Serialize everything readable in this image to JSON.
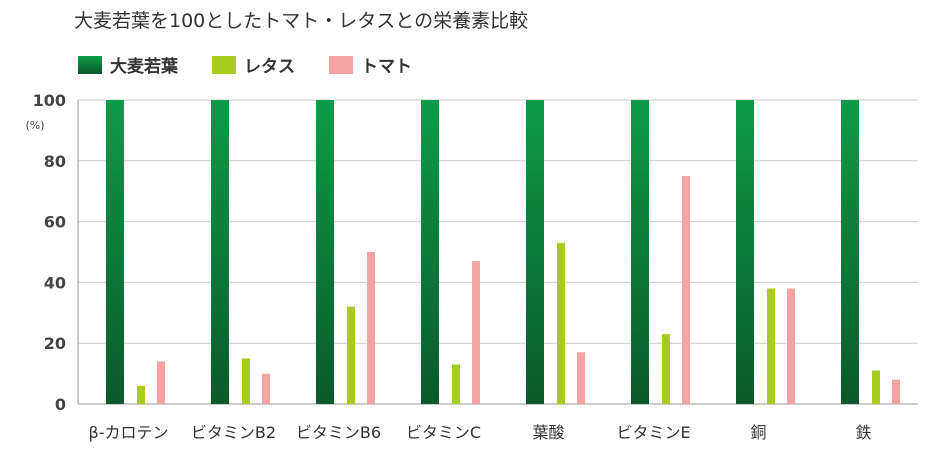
{
  "chart_data": {
    "type": "bar",
    "title": "大麦若葉を100としたトマト・レタスとの栄養素比較",
    "ylabel": "(%)",
    "ylim": [
      0,
      100
    ],
    "yticks": [
      0,
      20,
      40,
      60,
      80,
      100
    ],
    "grid": true,
    "legend_position": "top-left",
    "categories": [
      "β-カロテン",
      "ビタミンB2",
      "ビタミンB6",
      "ビタミンC",
      "葉酸",
      "ビタミンE",
      "銅",
      "鉄"
    ],
    "series": [
      {
        "name": "大麦若葉",
        "color": "#0b8a3e",
        "values": [
          100,
          100,
          100,
          100,
          100,
          100,
          100,
          100
        ]
      },
      {
        "name": "レタス",
        "color": "#a5cc1e",
        "values": [
          6,
          15,
          32,
          13,
          53,
          23,
          38,
          11
        ]
      },
      {
        "name": "トマト",
        "color": "#f4a2a2",
        "values": [
          14,
          10,
          50,
          47,
          17,
          75,
          38,
          8
        ]
      }
    ]
  }
}
